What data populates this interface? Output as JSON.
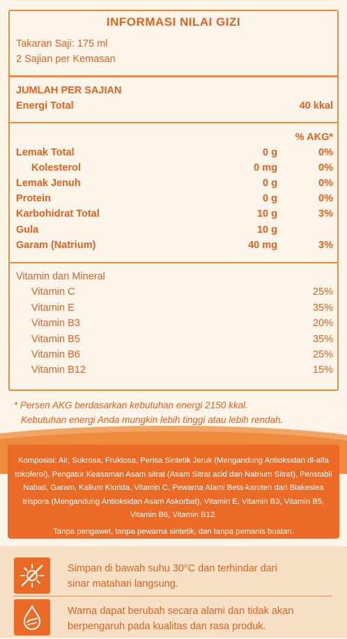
{
  "panel": {
    "title": "INFORMASI NILAI GIZI",
    "serving_size": "Takaran Saji: 175 ml",
    "servings": "2 Sajian per Kemasan",
    "amount_header": "JUMLAH PER SAJIAN",
    "energy_label": "Energi Total",
    "energy_value": "40 kkal",
    "akg_header": "% AKG*"
  },
  "nutrients": [
    {
      "name": "Lemak Total",
      "amount": "0 g",
      "akg": "0%"
    },
    {
      "name": "Kolesterol",
      "amount": "0 mg",
      "akg": "0%"
    },
    {
      "name": "Lemak Jenuh",
      "amount": "0 g",
      "akg": "0%"
    },
    {
      "name": "Protein",
      "amount": "0 g",
      "akg": "0%"
    },
    {
      "name": "Karbohidrat Total",
      "amount": "10 g",
      "akg": "3%"
    },
    {
      "name": "Gula",
      "amount": "10 g",
      "akg": ""
    },
    {
      "name": "Garam (Natrium)",
      "amount": "40 mg",
      "akg": "3%"
    }
  ],
  "vitamins": {
    "header": "Vitamin dan Mineral",
    "items": [
      {
        "name": "Vitamin C",
        "akg": "25%"
      },
      {
        "name": "Vitamin E",
        "akg": "35%"
      },
      {
        "name": "Vitamin B3",
        "akg": "20%"
      },
      {
        "name": "Vitamin B5",
        "akg": "35%"
      },
      {
        "name": "Vitamin B6",
        "akg": "25%"
      },
      {
        "name": "Vitamin B12",
        "akg": "15%"
      }
    ]
  },
  "footnote": {
    "line1": "* Persen AKG berdasarkan kebutuhan energi 2150 kkal.",
    "line2": "Kebutuhan energi Anda mungkin lebih tinggi atau lebih rendah."
  },
  "composition": {
    "text": "Komposisi: Air, Sukrosa, Fruktosa, Perisa Sintetik Jeruk (Mengandung Antioksidan dl-alfa tokoferol), Pengatur Keasaman Asam sitrat (Asam Sitrat acid dan Natrium Sitrat), Penstabil Nabati, Garam, Kalium Klorida, Vitamin C, Pewarna Alami Beta-karoten dari Blakeslea trispora (Mengandung Antioksidan Asam Askorbat), Vitamin E, Vitamin B3, Vitamin B5, Vitamin B6, Vitamin B12.",
    "claim": "Tanpa pengawet, tanpa pewarna sintetik, dan tanpa pemanis buatan."
  },
  "storage": {
    "line1": "Simpan di bawah suhu 30°C dan terhindar dari",
    "line2": "sinar matahari langsung.",
    "icon": "no-sun-icon"
  },
  "color_note": {
    "line1": "Warna dapat berubah secara alami dan tidak akan",
    "line2": "berpengaruh pada kualitas dan rasa produk.",
    "icon": "drop-icon"
  },
  "colors": {
    "accent": "#ea6a26",
    "text": "#e2621f",
    "background": "#fdf4ea",
    "bottom": "#f8e0c7"
  }
}
